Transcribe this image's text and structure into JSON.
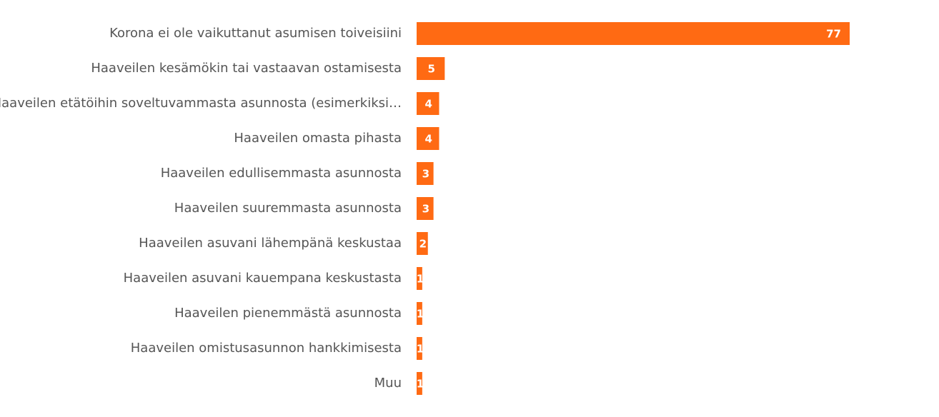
{
  "chart_data": {
    "type": "bar",
    "orientation": "horizontal",
    "categories": [
      "Korona ei ole vaikuttanut asumisen toiveisiini",
      "Haaveilen kesämökin tai vastaavan ostamisesta",
      "Haaveilen etätöihin soveltuvammasta asunnosta (esimerkiksi…",
      "Haaveilen omasta pihasta",
      "Haaveilen edullisemmasta asunnosta",
      "Haaveilen suuremmasta asunnosta",
      "Haaveilen asuvani lähempänä keskustaa",
      "Haaveilen asuvani kauempana keskustasta",
      "Haaveilen pienemmästä asunnosta",
      "Haaveilen omistusasunnon hankkimisesta",
      "Muu"
    ],
    "values": [
      77,
      5,
      4,
      4,
      3,
      3,
      2,
      1,
      1,
      1,
      1
    ],
    "color": "#ff6a13"
  }
}
